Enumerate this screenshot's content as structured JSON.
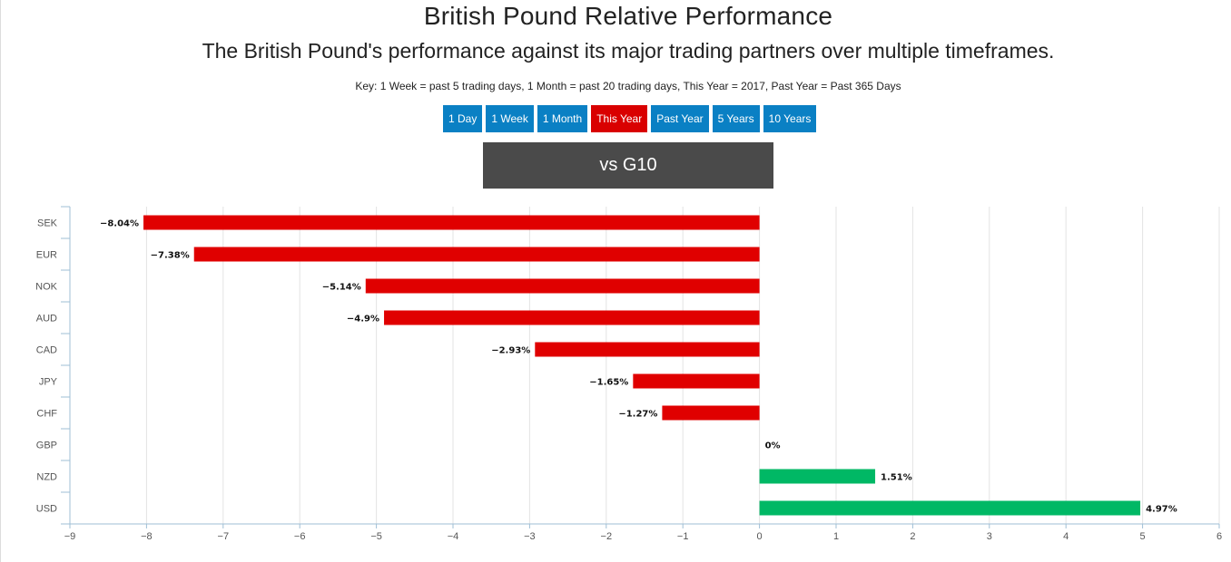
{
  "header": {
    "title": "British Pound Relative Performance",
    "subtitle": "The British Pound's performance against its major trading partners over multiple timeframes.",
    "key": "Key: 1 Week = past 5 trading days, 1 Month = past 20 trading days, This Year = 2017, Past Year = Past 365 Days"
  },
  "tabs": [
    {
      "label": "1 Day",
      "active": false
    },
    {
      "label": "1 Week",
      "active": false
    },
    {
      "label": "1 Month",
      "active": false
    },
    {
      "label": "This Year",
      "active": true
    },
    {
      "label": "Past Year",
      "active": false
    },
    {
      "label": "5 Years",
      "active": false
    },
    {
      "label": "10 Years",
      "active": false
    }
  ],
  "group_header": "vs G10",
  "colors": {
    "tab": "#0a80c4",
    "tab_active": "#d90000",
    "negative": "#e00000",
    "positive": "#00b865",
    "header_bg": "#4a4a4a"
  },
  "chart_data": {
    "type": "bar",
    "orientation": "horizontal",
    "categories": [
      "SEK",
      "EUR",
      "NOK",
      "AUD",
      "CAD",
      "JPY",
      "CHF",
      "GBP",
      "NZD",
      "USD"
    ],
    "values": [
      -8.04,
      -7.38,
      -5.14,
      -4.9,
      -2.93,
      -1.65,
      -1.27,
      0,
      1.51,
      4.97
    ],
    "value_labels": [
      "−8.04%",
      "−7.38%",
      "−5.14%",
      "−4.9%",
      "−2.93%",
      "−1.65%",
      "−1.27%",
      "0%",
      "1.51%",
      "4.97%"
    ],
    "xlim": [
      -9,
      6
    ],
    "xticks": [
      -9,
      -8,
      -7,
      -6,
      -5,
      -4,
      -3,
      -2,
      -1,
      0,
      1,
      2,
      3,
      4,
      5,
      6
    ],
    "xtick_labels": [
      "−9",
      "−8",
      "−7",
      "−6",
      "−5",
      "−4",
      "−3",
      "−2",
      "−1",
      "0",
      "1",
      "2",
      "3",
      "4",
      "5",
      "6"
    ],
    "grid": true
  }
}
